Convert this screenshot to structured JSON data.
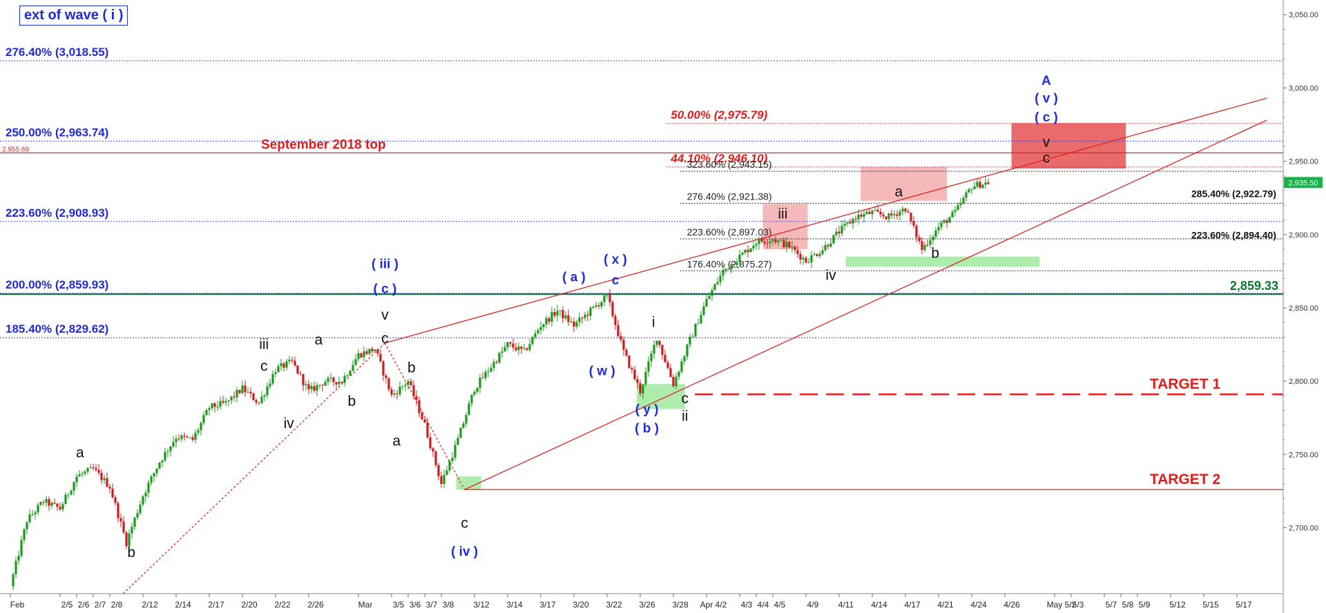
{
  "chart_data": {
    "type": "candlestick",
    "title": "ext of wave ( i )",
    "price_axis": {
      "position": "right",
      "ylim": [
        2655,
        3060
      ],
      "ticks": [
        2700,
        2750,
        2800,
        2850,
        2900,
        2950,
        3000,
        3050
      ],
      "tick_labels": [
        "2,700.00",
        "2,750.00",
        "2,800.00",
        "2,850.00",
        "2,900.00",
        "2,950.00",
        "3,000.00",
        "3,050.00"
      ],
      "last_price": "2,935.50",
      "last_price_value": 2935.5
    },
    "date_axis": {
      "ticks": [
        {
          "i": 0,
          "label": "Feb"
        },
        {
          "i": 3,
          "label": "2/5"
        },
        {
          "i": 4,
          "label": "2/6"
        },
        {
          "i": 5,
          "label": "2/7"
        },
        {
          "i": 6,
          "label": "2/8"
        },
        {
          "i": 8,
          "label": "2/12"
        },
        {
          "i": 10,
          "label": "2/14"
        },
        {
          "i": 12,
          "label": "2/17"
        },
        {
          "i": 14,
          "label": "2/20"
        },
        {
          "i": 16,
          "label": "2/22"
        },
        {
          "i": 18,
          "label": "2/26"
        },
        {
          "i": 21,
          "label": "Mar"
        },
        {
          "i": 23,
          "label": "3/5"
        },
        {
          "i": 24,
          "label": "3/6"
        },
        {
          "i": 25,
          "label": "3/7"
        },
        {
          "i": 26,
          "label": "3/8"
        },
        {
          "i": 28,
          "label": "3/12"
        },
        {
          "i": 30,
          "label": "3/14"
        },
        {
          "i": 32,
          "label": "3/17"
        },
        {
          "i": 34,
          "label": "3/20"
        },
        {
          "i": 36,
          "label": "3/22"
        },
        {
          "i": 38,
          "label": "3/26"
        },
        {
          "i": 40,
          "label": "3/28"
        },
        {
          "i": 42,
          "label": "Apr 4/2"
        },
        {
          "i": 44,
          "label": "4/3"
        },
        {
          "i": 45,
          "label": "4/4"
        },
        {
          "i": 46,
          "label": "4/5"
        },
        {
          "i": 48,
          "label": "4/9"
        },
        {
          "i": 50,
          "label": "4/11"
        },
        {
          "i": 52,
          "label": "4/14"
        },
        {
          "i": 54,
          "label": "4/17"
        },
        {
          "i": 56,
          "label": "4/21"
        },
        {
          "i": 58,
          "label": "4/24"
        },
        {
          "i": 60,
          "label": "4/26"
        },
        {
          "i": 63,
          "label": "May 5/2"
        },
        {
          "i": 64,
          "label": "5/3"
        },
        {
          "i": 66,
          "label": "5/7"
        },
        {
          "i": 67,
          "label": "5/8"
        },
        {
          "i": 68,
          "label": "5/9"
        },
        {
          "i": 70,
          "label": "5/12"
        },
        {
          "i": 72,
          "label": "5/15"
        },
        {
          "i": 74,
          "label": "5/17"
        }
      ]
    },
    "price_path": [
      [
        0,
        2660
      ],
      [
        1,
        2705
      ],
      [
        2,
        2718
      ],
      [
        3,
        2713
      ],
      [
        4,
        2735
      ],
      [
        5,
        2740
      ],
      [
        6,
        2728
      ],
      [
        7,
        2690
      ],
      [
        8,
        2722
      ],
      [
        9,
        2745
      ],
      [
        10,
        2762
      ],
      [
        11,
        2760
      ],
      [
        12,
        2782
      ],
      [
        13,
        2785
      ],
      [
        14,
        2795
      ],
      [
        15,
        2785
      ],
      [
        16,
        2808
      ],
      [
        17,
        2813
      ],
      [
        18,
        2793
      ],
      [
        19,
        2800
      ],
      [
        20,
        2800
      ],
      [
        21,
        2818
      ],
      [
        22,
        2822
      ],
      [
        23,
        2790
      ],
      [
        24,
        2800
      ],
      [
        25,
        2770
      ],
      [
        26,
        2730
      ],
      [
        27,
        2760
      ],
      [
        28,
        2795
      ],
      [
        29,
        2810
      ],
      [
        30,
        2825
      ],
      [
        31,
        2820
      ],
      [
        32,
        2838
      ],
      [
        33,
        2848
      ],
      [
        34,
        2838
      ],
      [
        35,
        2848
      ],
      [
        36,
        2858
      ],
      [
        37,
        2820
      ],
      [
        38,
        2793
      ],
      [
        39,
        2830
      ],
      [
        40,
        2798
      ],
      [
        41,
        2828
      ],
      [
        42,
        2855
      ],
      [
        43,
        2875
      ],
      [
        44,
        2885
      ],
      [
        45,
        2895
      ],
      [
        46,
        2897
      ],
      [
        47,
        2892
      ],
      [
        48,
        2882
      ],
      [
        49,
        2890
      ],
      [
        50,
        2902
      ],
      [
        51,
        2912
      ],
      [
        52,
        2915
      ],
      [
        53,
        2912
      ],
      [
        54,
        2918
      ],
      [
        55,
        2890
      ],
      [
        56,
        2905
      ],
      [
        57,
        2915
      ],
      [
        58,
        2933
      ],
      [
        59,
        2935.5
      ]
    ],
    "fib_levels_left": [
      {
        "label": "276.40% (3,018.55)",
        "value": 3018.55
      },
      {
        "label": "250.00% (2,963.74)",
        "value": 2963.74
      },
      {
        "label": "223.60% (2,908.93)",
        "value": 2908.93
      },
      {
        "label": "200.00% (2,859.93)",
        "value": 2859.93
      },
      {
        "label": "185.40% (2,829.62)",
        "value": 2829.62
      }
    ],
    "fib_levels_red": [
      {
        "label": "50.00% (2,975.79)",
        "value": 2975.79
      },
      {
        "label": "44.10% (2,946.10)",
        "value": 2946.1
      }
    ],
    "fib_levels_mid": [
      {
        "label": "323.60% (2,943.15)",
        "value": 2943.15
      },
      {
        "label": "276.40% (2,921.38)",
        "value": 2921.38
      },
      {
        "label": "223.60% (2,897.03)",
        "value": 2897.03
      },
      {
        "label": "176.40% (2,875.27)",
        "value": 2875.27
      }
    ],
    "fib_levels_right": [
      {
        "label": "285.40% (2,922.79)",
        "value": 2922.79
      },
      {
        "label": "223.60% (2,894.40)",
        "value": 2894.4
      }
    ],
    "sep_top": {
      "label": "September 2018 top",
      "price_label": "2,955.69",
      "value": 2955.69
    },
    "green_level": {
      "label": "2,859.33",
      "value": 2859.33
    },
    "targets": [
      {
        "label": "TARGET 1",
        "value": 2791
      },
      {
        "label": "TARGET 2",
        "value": 2726
      }
    ],
    "wave_labels": [
      {
        "text": "a",
        "i": 4.2,
        "v": 2748,
        "color": "black"
      },
      {
        "text": "b",
        "i": 7.3,
        "v": 2680,
        "color": "black"
      },
      {
        "text": "iii",
        "i": 15.3,
        "v": 2822,
        "color": "black"
      },
      {
        "text": "c",
        "i": 15.3,
        "v": 2807,
        "color": "black"
      },
      {
        "text": "iv",
        "i": 16.8,
        "v": 2768,
        "color": "black"
      },
      {
        "text": "a",
        "i": 18.6,
        "v": 2825,
        "color": "black"
      },
      {
        "text": "b",
        "i": 20.6,
        "v": 2783,
        "color": "black"
      },
      {
        "text": "( iii )",
        "i": 22.6,
        "v": 2877,
        "color": "blue"
      },
      {
        "text": "( c )",
        "i": 22.6,
        "v": 2860,
        "color": "blue"
      },
      {
        "text": "v",
        "i": 22.6,
        "v": 2842,
        "color": "black"
      },
      {
        "text": "c",
        "i": 22.6,
        "v": 2826,
        "color": "black"
      },
      {
        "text": "a",
        "i": 23.3,
        "v": 2756,
        "color": "black"
      },
      {
        "text": "b",
        "i": 24.2,
        "v": 2806,
        "color": "black"
      },
      {
        "text": "c",
        "i": 27.4,
        "v": 2700,
        "color": "black"
      },
      {
        "text": "( iv )",
        "i": 27.4,
        "v": 2681,
        "color": "blue"
      },
      {
        "text": "( a )",
        "i": 34.0,
        "v": 2868,
        "color": "blue"
      },
      {
        "text": "( x )",
        "i": 36.5,
        "v": 2880,
        "color": "blue"
      },
      {
        "text": "c",
        "i": 36.5,
        "v": 2866,
        "color": "blue"
      },
      {
        "text": "( w )",
        "i": 35.7,
        "v": 2804,
        "color": "blue"
      },
      {
        "text": "i",
        "i": 38.8,
        "v": 2837,
        "color": "black"
      },
      {
        "text": "( y )",
        "i": 38.4,
        "v": 2778,
        "color": "blue"
      },
      {
        "text": "( b )",
        "i": 38.4,
        "v": 2765,
        "color": "blue"
      },
      {
        "text": "c",
        "i": 40.7,
        "v": 2785,
        "color": "black"
      },
      {
        "text": "ii",
        "i": 40.7,
        "v": 2773,
        "color": "black"
      },
      {
        "text": "iii",
        "i": 46.6,
        "v": 2911,
        "color": "black"
      },
      {
        "text": "iv",
        "i": 49.5,
        "v": 2869,
        "color": "black"
      },
      {
        "text": "a",
        "i": 53.6,
        "v": 2926,
        "color": "black"
      },
      {
        "text": "b",
        "i": 55.8,
        "v": 2884,
        "color": "black"
      },
      {
        "text": "A",
        "i": 62.5,
        "v": 3002,
        "color": "blue"
      },
      {
        "text": "( v )",
        "i": 62.5,
        "v": 2990,
        "color": "blue"
      },
      {
        "text": "( c )",
        "i": 62.5,
        "v": 2977,
        "color": "blue"
      },
      {
        "text": "v",
        "i": 62.5,
        "v": 2960,
        "color": "black"
      },
      {
        "text": "c",
        "i": 62.5,
        "v": 2949,
        "color": "black"
      }
    ],
    "zones": [
      {
        "name": "red-zone-target",
        "i0": 60.4,
        "i1": 67.3,
        "v0": 2945,
        "v1": 2976,
        "color": "#e23a3a",
        "opacity": 0.75
      },
      {
        "name": "pink-zone-a",
        "i0": 51.3,
        "i1": 56.5,
        "v0": 2923,
        "v1": 2946,
        "color": "#f08a8a",
        "opacity": 0.6
      },
      {
        "name": "pink-zone-iii",
        "i0": 45.4,
        "i1": 48.1,
        "v0": 2890,
        "v1": 2921,
        "color": "#f08a8a",
        "opacity": 0.6
      },
      {
        "name": "green-zone-b",
        "i0": 50.4,
        "i1": 62.1,
        "v0": 2878,
        "v1": 2885,
        "color": "#78e078",
        "opacity": 0.6
      },
      {
        "name": "green-zone-ii",
        "i0": 37.8,
        "i1": 40.7,
        "v0": 2781,
        "v1": 2798,
        "color": "#78e078",
        "opacity": 0.6
      },
      {
        "name": "green-zone-iv",
        "i0": 26.9,
        "i1": 28.4,
        "v0": 2726,
        "v1": 2735,
        "color": "#78e078",
        "opacity": 0.6
      }
    ],
    "channel_lines": [
      {
        "name": "upper-channel-line",
        "from": [
          22.6,
          2826
        ],
        "to": [
          75.8,
          2993
        ]
      },
      {
        "name": "lower-channel-line",
        "from": [
          27.4,
          2726
        ],
        "to": [
          75.8,
          2978
        ]
      }
    ],
    "dotted_lines": [
      {
        "name": "dotted-line-rise",
        "from": [
          6.8,
          2655
        ],
        "to": [
          22.6,
          2826
        ]
      },
      {
        "name": "dotted-line-fall",
        "from": [
          22.6,
          2826
        ],
        "to": [
          27.4,
          2726
        ]
      }
    ],
    "grid": false,
    "legend": "none"
  }
}
